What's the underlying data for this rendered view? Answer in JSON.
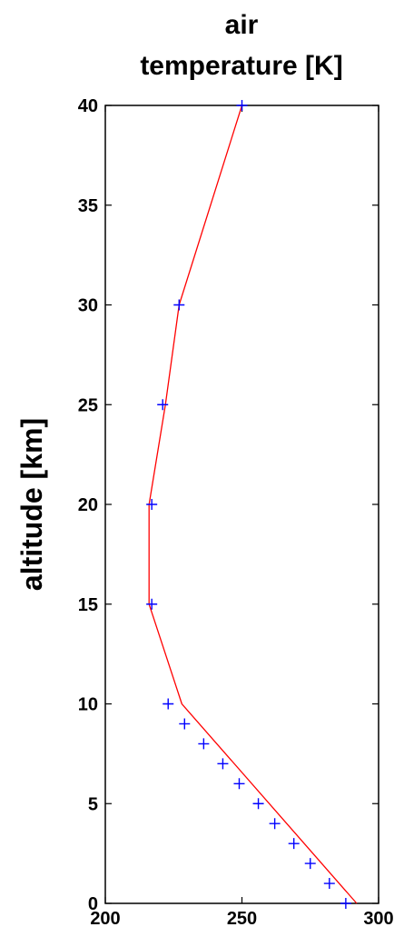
{
  "chart_data": {
    "type": "line",
    "title_lines": [
      "air",
      "temperature [K]"
    ],
    "xlabel": "",
    "ylabel": "altitude [km]",
    "xlim": [
      200,
      300
    ],
    "ylim": [
      0,
      40
    ],
    "xticks": [
      200,
      250,
      300
    ],
    "yticks": [
      0,
      5,
      10,
      15,
      20,
      25,
      30,
      35,
      40
    ],
    "grid": false,
    "series": [
      {
        "kind": "line",
        "color": "#ff0000",
        "x": [
          292,
          228,
          216,
          216,
          222,
          227,
          250
        ],
        "y": [
          0,
          10,
          15,
          20,
          25,
          30,
          40
        ]
      },
      {
        "kind": "plus-markers",
        "color": "#0000ff",
        "x": [
          288,
          282,
          275,
          269,
          262,
          256,
          249,
          243,
          236,
          229,
          223,
          217,
          217,
          221,
          227,
          250
        ],
        "y": [
          0,
          1,
          2,
          3,
          4,
          5,
          6,
          7,
          8,
          9,
          10,
          15,
          20,
          25,
          30,
          40
        ]
      }
    ]
  }
}
